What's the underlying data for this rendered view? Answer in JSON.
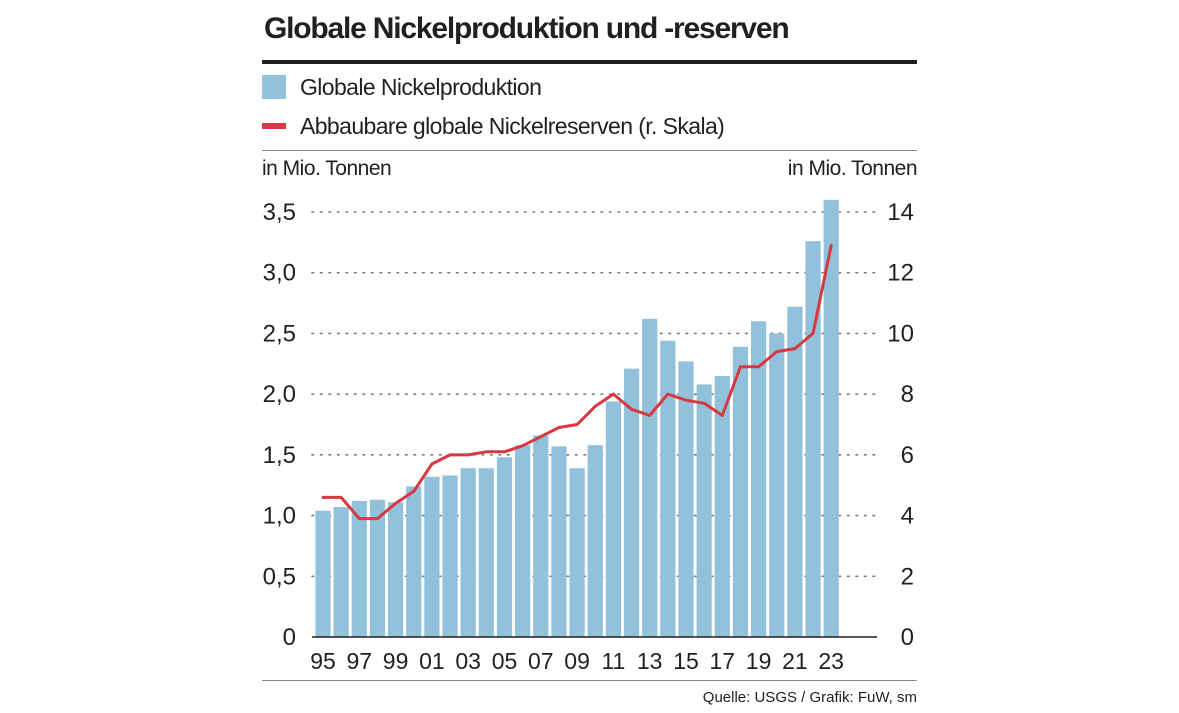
{
  "chart_data": {
    "type": "bar",
    "title": "Globale Nickelproduktion und -reserven",
    "ylabel_left": "in Mio. Tonnen",
    "ylabel_right": "in Mio. Tonnen",
    "x": [
      1995,
      1996,
      1997,
      1998,
      1999,
      2000,
      2001,
      2002,
      2003,
      2004,
      2005,
      2006,
      2007,
      2008,
      2009,
      2010,
      2011,
      2012,
      2013,
      2014,
      2015,
      2016,
      2017,
      2018,
      2019,
      2020,
      2021,
      2022,
      2023
    ],
    "x_tick_labels": [
      "95",
      "97",
      "99",
      "01",
      "03",
      "05",
      "07",
      "09",
      "11",
      "13",
      "15",
      "17",
      "19",
      "21",
      "23"
    ],
    "y_left_ticks": [
      "0",
      "0,5",
      "1,0",
      "1,5",
      "2,0",
      "2,5",
      "3,0",
      "3,5"
    ],
    "y_right_ticks": [
      "0",
      "2",
      "4",
      "6",
      "8",
      "10",
      "12",
      "14"
    ],
    "ylim_left": [
      0,
      3.5
    ],
    "ylim_right": [
      0,
      14
    ],
    "grid": "dotted horizontal",
    "series": [
      {
        "name": "Globale Nickelproduktion",
        "type": "bar",
        "axis": "left",
        "color": "#92c1dc",
        "values": [
          1.04,
          1.07,
          1.12,
          1.13,
          1.11,
          1.24,
          1.32,
          1.33,
          1.39,
          1.39,
          1.48,
          1.58,
          1.66,
          1.57,
          1.39,
          1.58,
          1.94,
          2.21,
          2.62,
          2.44,
          2.27,
          2.08,
          2.15,
          2.39,
          2.6,
          2.5,
          2.72,
          3.26,
          3.6
        ]
      },
      {
        "name": "Abbaubare globale Nickelreserven (r. Skala)",
        "type": "line",
        "axis": "right",
        "color": "#d8383f",
        "values": [
          4.6,
          4.6,
          3.9,
          3.9,
          4.4,
          4.8,
          5.7,
          6.0,
          6.0,
          6.1,
          6.1,
          6.3,
          6.6,
          6.9,
          7.0,
          7.6,
          8.0,
          7.5,
          7.3,
          8.0,
          7.8,
          7.7,
          7.3,
          8.9,
          8.9,
          9.4,
          9.5,
          10.0,
          12.9
        ]
      }
    ]
  },
  "source": "Quelle: USGS / Grafik: FuW, sm"
}
